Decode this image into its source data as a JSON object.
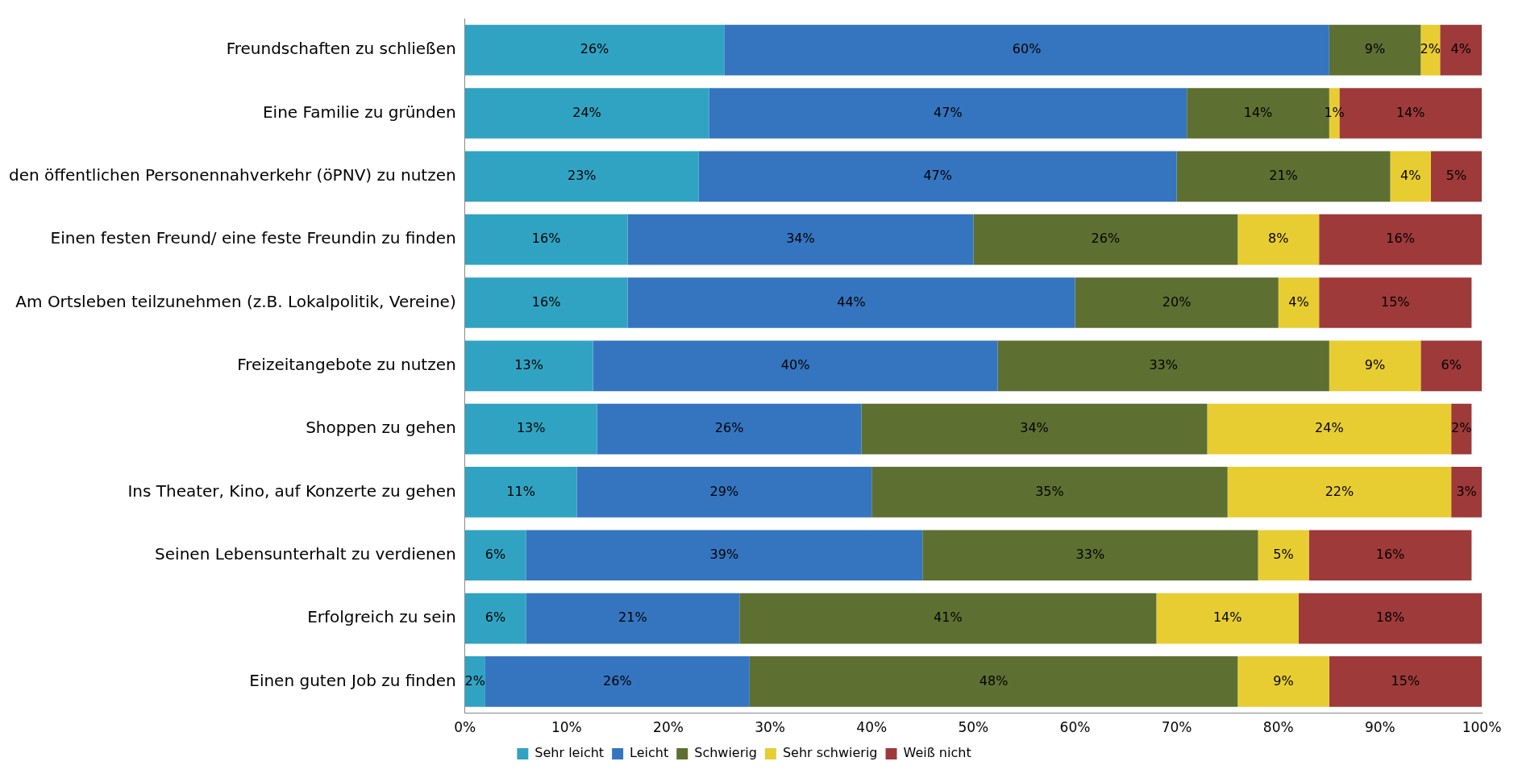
{
  "chart_data": {
    "type": "bar",
    "orientation": "horizontal",
    "stacked": true,
    "categories": [
      "Freundschaften zu schließen",
      "Eine Familie zu gründen",
      "den öffentlichen Personennahverkehr (öPNV) zu nutzen",
      "Einen festen Freund/ eine feste Freundin zu finden",
      "Am Ortsleben teilzunehmen (z.B. Lokalpolitik, Vereine)",
      "Freizeitangebote zu nutzen",
      "Shoppen zu gehen",
      "Ins Theater, Kino, auf Konzerte zu gehen",
      "Seinen Lebensunterhalt zu verdienen",
      "Erfolgreich zu sein",
      "Einen guten Job zu finden"
    ],
    "series": [
      {
        "name": "Sehr leicht",
        "color": "#31a3c2",
        "values": [
          25.5,
          24,
          23,
          16,
          16,
          12.6,
          13,
          11,
          6,
          6,
          2
        ],
        "value_labels": [
          "26%",
          "24%",
          "23%",
          "16%",
          "16%",
          "13%",
          "13%",
          "11%",
          "6%",
          "6%",
          "2%"
        ]
      },
      {
        "name": "Leicht",
        "color": "#3575bf",
        "values": [
          59.5,
          47,
          47,
          34,
          44,
          39.8,
          26,
          29,
          39,
          21,
          26
        ],
        "value_labels": [
          "60%",
          "47%",
          "47%",
          "34%",
          "44%",
          "40%",
          "26%",
          "29%",
          "39%",
          "21%",
          "26%"
        ]
      },
      {
        "name": "Schwierig",
        "color": "#5d7031",
        "values": [
          9,
          14,
          21,
          26,
          20,
          32.6,
          34,
          35,
          33,
          41,
          48
        ],
        "value_labels": [
          "9%",
          "14%",
          "21%",
          "26%",
          "20%",
          "33%",
          "34%",
          "35%",
          "33%",
          "41%",
          "48%"
        ]
      },
      {
        "name": "Sehr schwierig",
        "color": "#e8cd32",
        "values": [
          1.9,
          1,
          4,
          8,
          4,
          9,
          24,
          22,
          5,
          14,
          9
        ],
        "value_labels": [
          "2%",
          "1%",
          "4%",
          "8%",
          "4%",
          "9%",
          "24%",
          "22%",
          "5%",
          "14%",
          "9%"
        ]
      },
      {
        "name": "Weiß nicht",
        "color": "#9e3a3a",
        "values": [
          4.1,
          14,
          5,
          16,
          15,
          6,
          2,
          3,
          16,
          18,
          15
        ],
        "value_labels": [
          "4%",
          "14%",
          "5%",
          "16%",
          "15%",
          "6%",
          "2%",
          "3%",
          "16%",
          "18%",
          "15%"
        ]
      }
    ],
    "xlim": [
      0,
      100
    ],
    "xticks": [
      {
        "value": 0,
        "label": "0%"
      },
      {
        "value": 10,
        "label": "10%"
      },
      {
        "value": 20,
        "label": "20%"
      },
      {
        "value": 30,
        "label": "30%"
      },
      {
        "value": 40,
        "label": "40%"
      },
      {
        "value": 50,
        "label": "50%"
      },
      {
        "value": 60,
        "label": "60%"
      },
      {
        "value": 70,
        "label": "70%"
      },
      {
        "value": 80,
        "label": "80%"
      },
      {
        "value": 90,
        "label": "90%"
      },
      {
        "value": 100,
        "label": "100%"
      }
    ],
    "grid": false,
    "legend": "bottom"
  }
}
